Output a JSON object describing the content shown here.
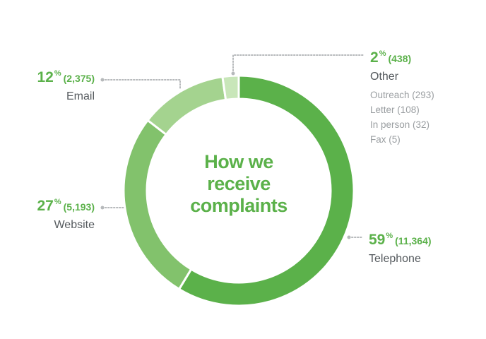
{
  "chart_data": {
    "type": "pie",
    "title": "How we receive complaints",
    "title_lines": [
      "How we",
      "receive",
      "complaints"
    ],
    "style": "donut",
    "colors": {
      "Telephone": "#5bb14a",
      "Website": "#82c26c",
      "Email": "#a4d38f",
      "Other": "#c8e6b9"
    },
    "leader_color": "#b6b9bb",
    "slices": [
      {
        "name": "Telephone",
        "percent": 59,
        "count": 11364,
        "percent_label": "59",
        "count_label": "(11,364)"
      },
      {
        "name": "Website",
        "percent": 27,
        "count": 5193,
        "percent_label": "27",
        "count_label": "(5,193)"
      },
      {
        "name": "Email",
        "percent": 12,
        "count": 2375,
        "percent_label": "12",
        "count_label": "(2,375)"
      },
      {
        "name": "Other",
        "percent": 2,
        "count": 438,
        "percent_label": "2",
        "count_label": "(438)",
        "breakdown": [
          "Outreach (293)",
          "Letter (108)",
          "In person (32)",
          "Fax (5)"
        ]
      }
    ],
    "percent_symbol": "%"
  }
}
